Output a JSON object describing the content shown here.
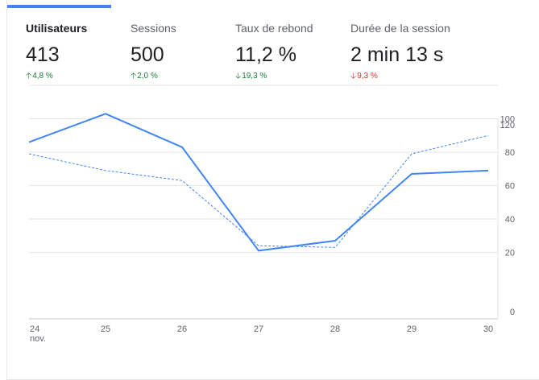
{
  "metrics": [
    {
      "label": "Utilisateurs",
      "value": "413",
      "change": "4,8 %",
      "direction": "up",
      "color": "#188038",
      "active": true
    },
    {
      "label": "Sessions",
      "value": "500",
      "change": "2,0 %",
      "direction": "up",
      "color": "#188038",
      "active": false
    },
    {
      "label": "Taux de rebond",
      "value": "11,2 %",
      "change": "19,3 %",
      "direction": "down",
      "color": "#188038",
      "active": false
    },
    {
      "label": "Durée de la session",
      "value": "2 min 13 s",
      "change": "9,3 %",
      "direction": "down",
      "color": "#d93025",
      "active": false
    }
  ],
  "icons": {
    "up": "arrow-up-icon",
    "down": "arrow-down-icon"
  },
  "chart_data": {
    "type": "line",
    "x": [
      "24",
      "25",
      "26",
      "27",
      "28",
      "29",
      "30"
    ],
    "x_sublabel": "nov.",
    "ylim": [
      0,
      120
    ],
    "yticks": [
      "0",
      "20",
      "40",
      "60",
      "80",
      "100",
      "120"
    ],
    "grid": true,
    "series": [
      {
        "style": "solid",
        "color": "#4285f4",
        "values": [
          86,
          103,
          83,
          21,
          27,
          67,
          69
        ]
      },
      {
        "style": "dashed",
        "color": "#4285f4",
        "values": [
          79,
          69,
          63,
          24,
          23,
          79,
          90
        ]
      }
    ]
  }
}
